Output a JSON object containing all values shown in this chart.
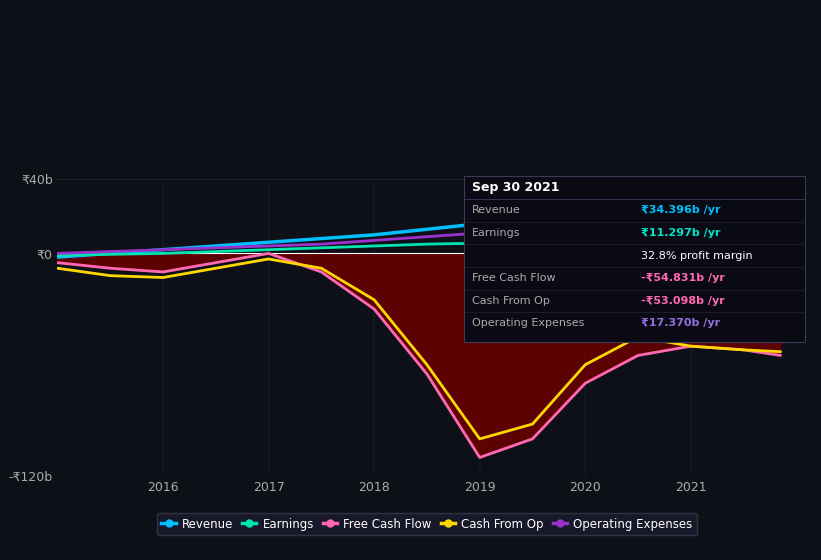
{
  "bg_color": "#0d1117",
  "plot_bg_color": "#0d1117",
  "ylim": [
    -120,
    40
  ],
  "xlim": [
    2015.0,
    2022.0
  ],
  "yticks": [
    -120,
    0,
    40
  ],
  "ytick_labels": [
    "-₹120b",
    "₹0",
    "₹40b"
  ],
  "xticks": [
    2016,
    2017,
    2018,
    2019,
    2020,
    2021
  ],
  "grid_color": "#2a2a3a",
  "zero_line_color": "#ffffff",
  "tooltip": {
    "title": "Sep 30 2021",
    "rows": [
      {
        "label": "Revenue",
        "value": "₹34.396b /yr",
        "value_color": "#00bfff"
      },
      {
        "label": "Earnings",
        "value": "₹11.297b /yr",
        "value_color": "#00e5cc"
      },
      {
        "label": "",
        "value": "32.8% profit margin",
        "value_color": "#ffffff"
      },
      {
        "label": "Free Cash Flow",
        "value": "-₹54.831b /yr",
        "value_color": "#ff69b4"
      },
      {
        "label": "Cash From Op",
        "value": "-₹53.098b /yr",
        "value_color": "#ff69b4"
      },
      {
        "label": "Operating Expenses",
        "value": "₹17.370b /yr",
        "value_color": "#9370db"
      }
    ]
  },
  "series": {
    "revenue": {
      "color": "#00bfff",
      "x": [
        2015.0,
        2015.5,
        2016.0,
        2016.5,
        2017.0,
        2017.5,
        2018.0,
        2018.5,
        2019.0,
        2019.5,
        2020.0,
        2020.5,
        2021.0,
        2021.5,
        2021.85
      ],
      "y": [
        -2,
        0,
        2,
        4,
        6,
        8,
        10,
        13,
        16,
        18,
        20,
        24,
        28,
        33,
        35
      ],
      "lw": 2.5
    },
    "earnings": {
      "color": "#00e5b0",
      "x": [
        2015.0,
        2015.5,
        2016.0,
        2016.5,
        2017.0,
        2017.5,
        2018.0,
        2018.5,
        2019.0,
        2019.5,
        2020.0,
        2020.5,
        2021.0,
        2021.5,
        2021.85
      ],
      "y": [
        -1,
        -0.5,
        0,
        1,
        2,
        3,
        4,
        5,
        5.5,
        6,
        7,
        8,
        9.5,
        11,
        11.3
      ],
      "lw": 2.0
    },
    "free_cash_flow": {
      "color": "#ff69b4",
      "x": [
        2015.0,
        2015.5,
        2016.0,
        2016.5,
        2017.0,
        2017.5,
        2018.0,
        2018.5,
        2019.0,
        2019.5,
        2020.0,
        2020.5,
        2021.0,
        2021.5,
        2021.85
      ],
      "y": [
        -5,
        -8,
        -10,
        -5,
        0,
        -10,
        -30,
        -65,
        -110,
        -100,
        -70,
        -55,
        -50,
        -52,
        -55
      ],
      "fill_color": "#6b0000",
      "fill_alpha": 0.85,
      "lw": 2.0
    },
    "cash_from_op": {
      "color": "#ffd700",
      "x": [
        2015.0,
        2015.5,
        2016.0,
        2016.5,
        2017.0,
        2017.5,
        2018.0,
        2018.5,
        2019.0,
        2019.5,
        2020.0,
        2020.5,
        2021.0,
        2021.5,
        2021.85
      ],
      "y": [
        -8,
        -12,
        -13,
        -8,
        -3,
        -8,
        -25,
        -60,
        -100,
        -92,
        -60,
        -45,
        -50,
        -52,
        -53
      ],
      "lw": 2.0
    },
    "operating_expenses": {
      "color": "#9932cc",
      "x": [
        2015.0,
        2015.5,
        2016.0,
        2016.5,
        2017.0,
        2017.5,
        2018.0,
        2018.5,
        2019.0,
        2019.5,
        2020.0,
        2020.5,
        2021.0,
        2021.5,
        2021.85
      ],
      "y": [
        0,
        1,
        2,
        3,
        4,
        5,
        7,
        9,
        11,
        12,
        13,
        15,
        16,
        17,
        17.5
      ],
      "lw": 2.0
    }
  },
  "legend": [
    {
      "label": "Revenue",
      "color": "#00bfff"
    },
    {
      "label": "Earnings",
      "color": "#00e5b0"
    },
    {
      "label": "Free Cash Flow",
      "color": "#ff69b4"
    },
    {
      "label": "Cash From Op",
      "color": "#ffd700"
    },
    {
      "label": "Operating Expenses",
      "color": "#9932cc"
    }
  ],
  "legend_bg": "#1a1a2e",
  "legend_border": "#3a3a4a"
}
